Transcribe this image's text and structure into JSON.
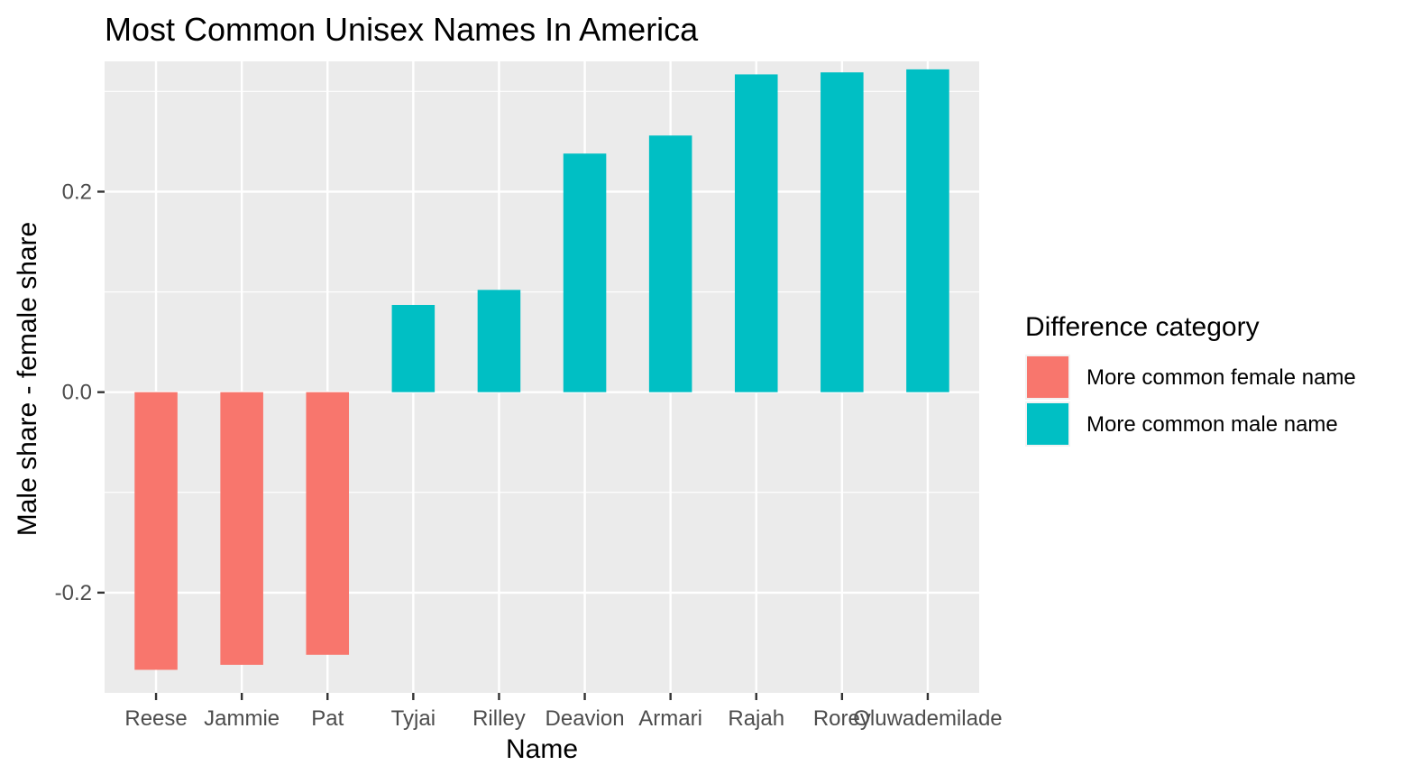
{
  "chart_data": {
    "type": "bar",
    "title": "Most Common Unisex Names In America",
    "xlabel": "Name",
    "ylabel": "Male share - female share",
    "categories": [
      "Reese",
      "Jammie",
      "Pat",
      "Tyjai",
      "Rilley",
      "Deavion",
      "Armari",
      "Rajah",
      "Rorey",
      "Oluwademilade"
    ],
    "values": [
      -0.277,
      -0.272,
      -0.262,
      0.087,
      0.102,
      0.238,
      0.256,
      0.317,
      0.319,
      0.322
    ],
    "value_groups": [
      "More common female name",
      "More common female name",
      "More common female name",
      "More common male name",
      "More common male name",
      "More common male name",
      "More common male name",
      "More common male name",
      "More common male name",
      "More common male name"
    ],
    "ylim": [
      -0.3,
      0.33
    ],
    "y_ticks": [
      -0.2,
      0.0,
      0.2
    ],
    "y_tick_labels": [
      "-0.2",
      "0.0",
      "0.2"
    ],
    "grid": true,
    "legend": {
      "title": "Difference category",
      "position": "right",
      "entries": [
        {
          "label": "More common female name",
          "color": "#F8766D"
        },
        {
          "label": "More common male name",
          "color": "#00BFC4"
        }
      ]
    },
    "colors": {
      "panel_background": "#EBEBEB",
      "grid": "#FFFFFF",
      "female": "#F8766D",
      "male": "#00BFC4"
    }
  }
}
